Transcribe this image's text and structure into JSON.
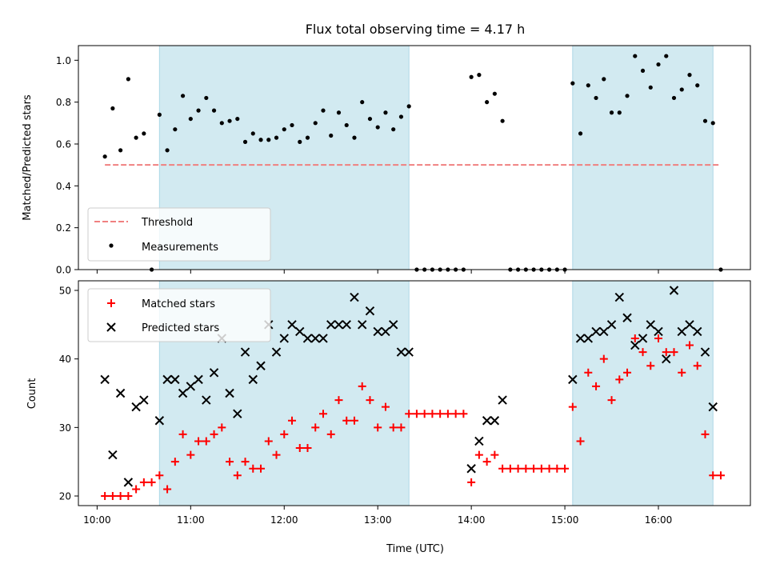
{
  "colors": {
    "band": "#add8e6",
    "threshold": "#f08080",
    "measurement": "#000000",
    "matched": "#ff0000",
    "predicted": "#000000"
  },
  "chart_data": [
    {
      "type": "scatter",
      "title": "Flux total observing time = 4.17 h",
      "xlabel": "",
      "ylabel": "Matched/Predicted stars",
      "xlim": [
        "09:48",
        "16:59"
      ],
      "ylim": [
        0,
        1.07
      ],
      "xticks": [
        "10:00",
        "11:00",
        "12:00",
        "13:00",
        "14:00",
        "15:00",
        "16:00"
      ],
      "yticks": [
        "0.0",
        "0.2",
        "0.4",
        "0.6",
        "0.8",
        "1.0"
      ],
      "shaded_intervals": [
        [
          "10:40",
          "13:20"
        ],
        [
          "15:05",
          "16:35"
        ]
      ],
      "legend_position": "lower-left",
      "legend": [
        "Threshold",
        "Measurements"
      ],
      "threshold": {
        "name": "Threshold",
        "y": 0.5,
        "x_range": [
          "10:05",
          "16:40"
        ]
      },
      "measurements": {
        "name": "Measurements",
        "points": [
          [
            "10:05",
            0.54
          ],
          [
            "10:10",
            0.77
          ],
          [
            "10:15",
            0.57
          ],
          [
            "10:20",
            0.91
          ],
          [
            "10:25",
            0.63
          ],
          [
            "10:30",
            0.65
          ],
          [
            "10:35",
            0.0
          ],
          [
            "10:40",
            0.74
          ],
          [
            "10:45",
            0.57
          ],
          [
            "10:50",
            0.67
          ],
          [
            "10:55",
            0.83
          ],
          [
            "11:00",
            0.72
          ],
          [
            "11:05",
            0.76
          ],
          [
            "11:10",
            0.82
          ],
          [
            "11:15",
            0.76
          ],
          [
            "11:20",
            0.7
          ],
          [
            "11:25",
            0.71
          ],
          [
            "11:30",
            0.72
          ],
          [
            "11:35",
            0.61
          ],
          [
            "11:40",
            0.65
          ],
          [
            "11:45",
            0.62
          ],
          [
            "11:50",
            0.62
          ],
          [
            "11:55",
            0.63
          ],
          [
            "12:00",
            0.67
          ],
          [
            "12:05",
            0.69
          ],
          [
            "12:10",
            0.61
          ],
          [
            "12:15",
            0.63
          ],
          [
            "12:20",
            0.7
          ],
          [
            "12:25",
            0.76
          ],
          [
            "12:30",
            0.64
          ],
          [
            "12:35",
            0.75
          ],
          [
            "12:40",
            0.69
          ],
          [
            "12:45",
            0.63
          ],
          [
            "12:50",
            0.8
          ],
          [
            "12:55",
            0.72
          ],
          [
            "13:00",
            0.68
          ],
          [
            "13:05",
            0.75
          ],
          [
            "13:10",
            0.67
          ],
          [
            "13:15",
            0.73
          ],
          [
            "13:20",
            0.78
          ],
          [
            "13:25",
            0.0
          ],
          [
            "13:30",
            0.0
          ],
          [
            "13:35",
            0.0
          ],
          [
            "13:40",
            0.0
          ],
          [
            "13:45",
            0.0
          ],
          [
            "13:50",
            0.0
          ],
          [
            "13:55",
            0.0
          ],
          [
            "14:00",
            0.92
          ],
          [
            "14:05",
            0.93
          ],
          [
            "14:10",
            0.8
          ],
          [
            "14:15",
            0.84
          ],
          [
            "14:20",
            0.71
          ],
          [
            "14:25",
            0.0
          ],
          [
            "14:30",
            0.0
          ],
          [
            "14:35",
            0.0
          ],
          [
            "14:40",
            0.0
          ],
          [
            "14:45",
            0.0
          ],
          [
            "14:50",
            0.0
          ],
          [
            "14:55",
            0.0
          ],
          [
            "15:00",
            0.0
          ],
          [
            "15:05",
            0.89
          ],
          [
            "15:10",
            0.65
          ],
          [
            "15:15",
            0.88
          ],
          [
            "15:20",
            0.82
          ],
          [
            "15:25",
            0.91
          ],
          [
            "15:30",
            0.75
          ],
          [
            "15:35",
            0.75
          ],
          [
            "15:40",
            0.83
          ],
          [
            "15:45",
            1.02
          ],
          [
            "15:50",
            0.95
          ],
          [
            "15:55",
            0.87
          ],
          [
            "16:00",
            0.98
          ],
          [
            "16:05",
            1.02
          ],
          [
            "16:10",
            0.82
          ],
          [
            "16:15",
            0.86
          ],
          [
            "16:20",
            0.93
          ],
          [
            "16:25",
            0.88
          ],
          [
            "16:30",
            0.71
          ],
          [
            "16:35",
            0.7
          ],
          [
            "16:40",
            0.0
          ]
        ]
      }
    },
    {
      "type": "scatter",
      "title": "",
      "xlabel": "Time (UTC)",
      "ylabel": "Count",
      "xlim": [
        "09:48",
        "16:59"
      ],
      "ylim": [
        18.6,
        51.4
      ],
      "xticks": [
        "10:00",
        "11:00",
        "12:00",
        "13:00",
        "14:00",
        "15:00",
        "16:00"
      ],
      "yticks": [
        "20",
        "30",
        "40",
        "50"
      ],
      "shaded_intervals": [
        [
          "10:40",
          "13:20"
        ],
        [
          "15:05",
          "16:35"
        ]
      ],
      "legend_position": "upper-left",
      "legend": [
        "Matched stars",
        "Predicted stars"
      ],
      "series": [
        {
          "name": "Matched stars",
          "marker": "plus",
          "points": [
            [
              "10:05",
              20
            ],
            [
              "10:10",
              20
            ],
            [
              "10:15",
              20
            ],
            [
              "10:20",
              20
            ],
            [
              "10:25",
              21
            ],
            [
              "10:30",
              22
            ],
            [
              "10:35",
              22
            ],
            [
              "10:40",
              23
            ],
            [
              "10:45",
              21
            ],
            [
              "10:50",
              25
            ],
            [
              "10:55",
              29
            ],
            [
              "11:00",
              26
            ],
            [
              "11:05",
              28
            ],
            [
              "11:10",
              28
            ],
            [
              "11:15",
              29
            ],
            [
              "11:20",
              30
            ],
            [
              "11:25",
              25
            ],
            [
              "11:30",
              23
            ],
            [
              "11:35",
              25
            ],
            [
              "11:40",
              24
            ],
            [
              "11:45",
              24
            ],
            [
              "11:50",
              28
            ],
            [
              "11:55",
              26
            ],
            [
              "12:00",
              29
            ],
            [
              "12:05",
              31
            ],
            [
              "12:10",
              27
            ],
            [
              "12:15",
              27
            ],
            [
              "12:20",
              30
            ],
            [
              "12:25",
              32
            ],
            [
              "12:30",
              29
            ],
            [
              "12:35",
              34
            ],
            [
              "12:40",
              31
            ],
            [
              "12:45",
              31
            ],
            [
              "12:50",
              36
            ],
            [
              "12:55",
              34
            ],
            [
              "13:00",
              30
            ],
            [
              "13:05",
              33
            ],
            [
              "13:10",
              30
            ],
            [
              "13:15",
              30
            ],
            [
              "13:20",
              32
            ],
            [
              "13:25",
              32
            ],
            [
              "13:30",
              32
            ],
            [
              "13:35",
              32
            ],
            [
              "13:40",
              32
            ],
            [
              "13:45",
              32
            ],
            [
              "13:50",
              32
            ],
            [
              "13:55",
              32
            ],
            [
              "14:00",
              22
            ],
            [
              "14:05",
              26
            ],
            [
              "14:10",
              25
            ],
            [
              "14:15",
              26
            ],
            [
              "14:20",
              24
            ],
            [
              "14:25",
              24
            ],
            [
              "14:30",
              24
            ],
            [
              "14:35",
              24
            ],
            [
              "14:40",
              24
            ],
            [
              "14:45",
              24
            ],
            [
              "14:50",
              24
            ],
            [
              "14:55",
              24
            ],
            [
              "15:00",
              24
            ],
            [
              "15:05",
              33
            ],
            [
              "15:10",
              28
            ],
            [
              "15:15",
              38
            ],
            [
              "15:20",
              36
            ],
            [
              "15:25",
              40
            ],
            [
              "15:30",
              34
            ],
            [
              "15:35",
              37
            ],
            [
              "15:40",
              38
            ],
            [
              "15:45",
              43
            ],
            [
              "15:50",
              41
            ],
            [
              "15:55",
              39
            ],
            [
              "16:00",
              43
            ],
            [
              "16:05",
              41
            ],
            [
              "16:10",
              41
            ],
            [
              "16:15",
              38
            ],
            [
              "16:20",
              42
            ],
            [
              "16:25",
              39
            ],
            [
              "16:30",
              29
            ],
            [
              "16:35",
              23
            ],
            [
              "16:40",
              23
            ]
          ]
        },
        {
          "name": "Predicted stars",
          "marker": "x",
          "points": [
            [
              "10:05",
              37
            ],
            [
              "10:10",
              26
            ],
            [
              "10:15",
              35
            ],
            [
              "10:20",
              22
            ],
            [
              "10:25",
              33
            ],
            [
              "10:30",
              34
            ],
            [
              "10:40",
              31
            ],
            [
              "10:45",
              37
            ],
            [
              "10:50",
              37
            ],
            [
              "10:55",
              35
            ],
            [
              "11:00",
              36
            ],
            [
              "11:05",
              37
            ],
            [
              "11:10",
              34
            ],
            [
              "11:15",
              38
            ],
            [
              "11:20",
              43
            ],
            [
              "11:25",
              35
            ],
            [
              "11:30",
              32
            ],
            [
              "11:35",
              41
            ],
            [
              "11:40",
              37
            ],
            [
              "11:45",
              39
            ],
            [
              "11:50",
              45
            ],
            [
              "11:55",
              41
            ],
            [
              "12:00",
              43
            ],
            [
              "12:05",
              45
            ],
            [
              "12:10",
              44
            ],
            [
              "12:15",
              43
            ],
            [
              "12:20",
              43
            ],
            [
              "12:25",
              43
            ],
            [
              "12:30",
              45
            ],
            [
              "12:35",
              45
            ],
            [
              "12:40",
              45
            ],
            [
              "12:45",
              49
            ],
            [
              "12:50",
              45
            ],
            [
              "12:55",
              47
            ],
            [
              "13:00",
              44
            ],
            [
              "13:05",
              44
            ],
            [
              "13:10",
              45
            ],
            [
              "13:15",
              41
            ],
            [
              "13:20",
              41
            ],
            [
              "14:00",
              24
            ],
            [
              "14:05",
              28
            ],
            [
              "14:10",
              31
            ],
            [
              "14:15",
              31
            ],
            [
              "14:20",
              34
            ],
            [
              "15:05",
              37
            ],
            [
              "15:10",
              43
            ],
            [
              "15:15",
              43
            ],
            [
              "15:20",
              44
            ],
            [
              "15:25",
              44
            ],
            [
              "15:30",
              45
            ],
            [
              "15:35",
              49
            ],
            [
              "15:40",
              46
            ],
            [
              "15:45",
              42
            ],
            [
              "15:50",
              43
            ],
            [
              "15:55",
              45
            ],
            [
              "16:00",
              44
            ],
            [
              "16:05",
              40
            ],
            [
              "16:10",
              50
            ],
            [
              "16:15",
              44
            ],
            [
              "16:20",
              45
            ],
            [
              "16:25",
              44
            ],
            [
              "16:30",
              41
            ],
            [
              "16:35",
              33
            ]
          ]
        }
      ]
    }
  ]
}
